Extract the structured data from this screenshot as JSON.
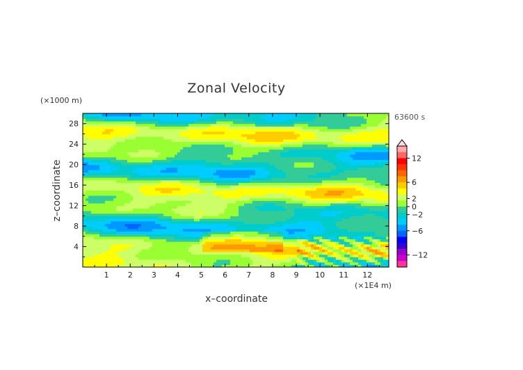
{
  "chart_data": {
    "type": "heatmap",
    "title": "Zonal Velocity",
    "xlabel": "x–coordinate",
    "ylabel": "z–coordinate",
    "x_unit": "(×1E4 m)",
    "y_unit": "(×1000 m)",
    "time_label": "63600 s",
    "xlim": [
      0,
      12.9
    ],
    "ylim": [
      0,
      30
    ],
    "x_ticks": [
      1,
      2,
      3,
      4,
      5,
      6,
      7,
      8,
      9,
      10,
      11,
      12
    ],
    "y_ticks": [
      4,
      8,
      12,
      16,
      20,
      24,
      28
    ],
    "colorbar": {
      "range": [
        -15,
        15
      ],
      "tick_values": [
        12,
        6,
        2,
        0,
        -2,
        -6,
        -12
      ],
      "tick_labels": [
        "12",
        "6",
        "2",
        "0",
        "−2",
        "−6",
        "−12"
      ],
      "colors": [
        "#ff3399",
        "#cc00cc",
        "#9900cc",
        "#3300cc",
        "#0000ff",
        "#0066ff",
        "#0099ff",
        "#00ccff",
        "#00cccc",
        "#33cc99",
        "#99ff33",
        "#ccff66",
        "#ffff00",
        "#ffcc00",
        "#ff9900",
        "#ff6600",
        "#ff3300",
        "#ff0000",
        "#ff6666",
        "#ffaaaa"
      ]
    }
  }
}
